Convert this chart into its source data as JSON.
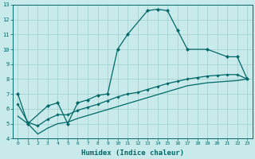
{
  "xlabel": "Humidex (Indice chaleur)",
  "series": {
    "main": {
      "x": [
        0,
        1,
        3,
        4,
        5,
        6,
        7,
        8,
        9,
        10,
        11,
        13,
        14,
        15,
        16,
        17,
        19,
        21,
        22,
        23
      ],
      "y": [
        7.0,
        5.0,
        6.2,
        6.4,
        5.0,
        6.4,
        6.6,
        6.9,
        7.0,
        10.0,
        11.0,
        12.6,
        12.7,
        12.6,
        11.3,
        10.0,
        10.0,
        9.5,
        9.5,
        8.0
      ]
    },
    "mid": {
      "x": [
        0,
        1,
        2,
        3,
        4,
        5,
        6,
        7,
        8,
        9,
        10,
        11,
        12,
        13,
        14,
        15,
        16,
        17,
        18,
        19,
        20,
        21,
        22,
        23
      ],
      "y": [
        6.3,
        5.1,
        4.85,
        5.3,
        5.6,
        5.6,
        5.9,
        6.1,
        6.3,
        6.55,
        6.8,
        7.0,
        7.1,
        7.3,
        7.5,
        7.7,
        7.85,
        8.0,
        8.1,
        8.2,
        8.25,
        8.3,
        8.3,
        8.0
      ]
    },
    "trend": {
      "x": [
        0,
        1,
        2,
        3,
        4,
        5,
        6,
        7,
        8,
        9,
        10,
        11,
        12,
        13,
        14,
        15,
        16,
        17,
        18,
        19,
        20,
        21,
        22,
        23
      ],
      "y": [
        5.5,
        5.0,
        4.3,
        4.7,
        5.0,
        5.1,
        5.35,
        5.55,
        5.75,
        5.95,
        6.15,
        6.35,
        6.55,
        6.75,
        6.95,
        7.15,
        7.35,
        7.55,
        7.65,
        7.75,
        7.8,
        7.85,
        7.9,
        8.0
      ]
    }
  },
  "color": "#006868",
  "bg_color": "#c8eaea",
  "grid_color": "#a0cccc",
  "ylim": [
    4,
    13
  ],
  "xlim": [
    -0.5,
    23.5
  ],
  "yticks": [
    4,
    5,
    6,
    7,
    8,
    9,
    10,
    11,
    12,
    13
  ],
  "xticks": [
    0,
    1,
    2,
    3,
    4,
    5,
    6,
    7,
    8,
    9,
    10,
    11,
    12,
    13,
    14,
    15,
    16,
    17,
    18,
    19,
    20,
    21,
    22,
    23
  ]
}
